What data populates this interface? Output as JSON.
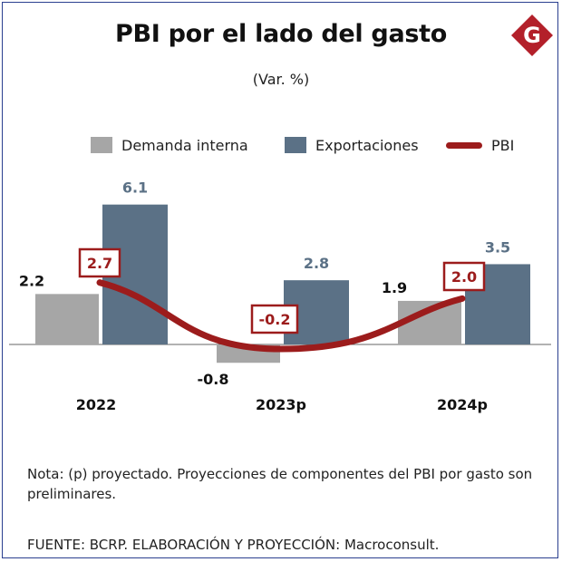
{
  "header": {
    "title": "PBI por el lado del gasto",
    "subtitle": "(Var. %)",
    "logo_letter": "G"
  },
  "colors": {
    "demanda": "#a6a6a6",
    "exportaciones": "#5b7186",
    "pbi": "#9c1c1c",
    "logo": "#b3202a"
  },
  "legend": {
    "demanda": "Demanda interna",
    "exportaciones": "Exportaciones",
    "pbi": "PBI"
  },
  "chart_data": {
    "type": "bar",
    "categories": [
      "2022",
      "2023p",
      "2024p"
    ],
    "series": [
      {
        "name": "Demanda interna",
        "type": "bar",
        "values": [
          2.2,
          -0.8,
          1.9
        ],
        "labels": [
          "2.2",
          "-0.8",
          "1.9"
        ]
      },
      {
        "name": "Exportaciones",
        "type": "bar",
        "values": [
          6.1,
          2.8,
          3.5
        ],
        "labels": [
          "6.1",
          "2.8",
          "3.5"
        ]
      },
      {
        "name": "PBI",
        "type": "line",
        "values": [
          2.7,
          -0.2,
          2.0
        ],
        "labels": [
          "2.7",
          "-0.2",
          "2.0"
        ]
      }
    ],
    "legend": "top",
    "grid": false,
    "ylim": [
      -1,
      7
    ]
  },
  "footer": {
    "note": "Nota: (p) proyectado. Proyecciones de componentes del PBI por gasto son preliminares.",
    "source": "FUENTE: BCRP. ELABORACIÓN Y PROYECCIÓN: Macroconsult."
  }
}
